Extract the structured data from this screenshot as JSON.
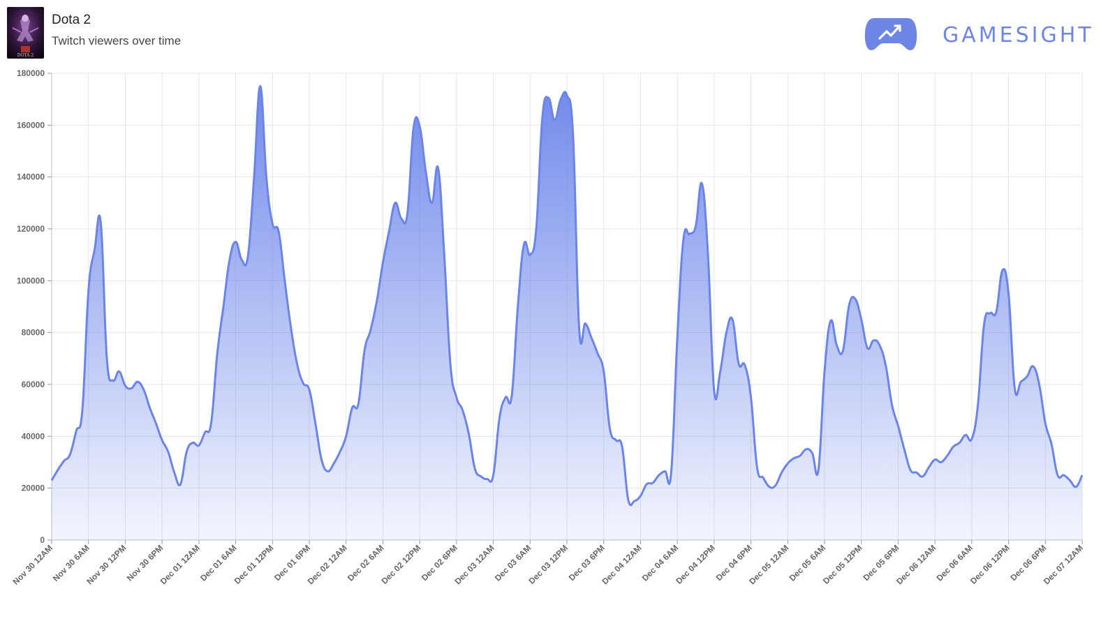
{
  "header": {
    "game_title": "Dota 2",
    "subtitle": "Twitch viewers over time",
    "thumbnail_icon": "dota2-cover-icon",
    "thumbnail_label": "DOTA 2"
  },
  "brand": {
    "name": "GAMESIGHT",
    "icon": "gamepad-trend-icon",
    "color": "#6d86e6"
  },
  "chart_data": {
    "type": "area",
    "title": "",
    "xlabel": "",
    "ylabel": "",
    "ylim": [
      0,
      180000
    ],
    "yticks": [
      0,
      20000,
      40000,
      60000,
      80000,
      100000,
      120000,
      140000,
      160000,
      180000
    ],
    "ytick_labels": [
      "0",
      "20000",
      "40000",
      "60000",
      "80000",
      "100000",
      "120000",
      "140000",
      "160000",
      "180000"
    ],
    "xlim": [
      0,
      168
    ],
    "xtick_hours": [
      0,
      6,
      12,
      18,
      24,
      30,
      36,
      42,
      48,
      54,
      60,
      66,
      72,
      78,
      84,
      90,
      96,
      102,
      108,
      114,
      120,
      126,
      132,
      138,
      144,
      150,
      156,
      162,
      168
    ],
    "xtick_labels": [
      "Nov 30 12AM",
      "Nov 30 6AM",
      "Nov 30 12PM",
      "Nov 30 6PM",
      "Dec 01 12AM",
      "Dec 01 6AM",
      "Dec 01 12PM",
      "Dec 01 6PM",
      "Dec 02 12AM",
      "Dec 02 6AM",
      "Dec 02 12PM",
      "Dec 02 6PM",
      "Dec 03 12AM",
      "Dec 03 6AM",
      "Dec 03 12PM",
      "Dec 03 6PM",
      "Dec 04 12AM",
      "Dec 04 6AM",
      "Dec 04 12PM",
      "Dec 04 6PM",
      "Dec 05 12AM",
      "Dec 05 6AM",
      "Dec 05 12PM",
      "Dec 05 6PM",
      "Dec 06 12AM",
      "Dec 06 6AM",
      "Dec 06 12PM",
      "Dec 06 6PM",
      "Dec 07 12AM"
    ],
    "grid": true,
    "line_color": "#6a84ea",
    "fill_color": "#6a84ea",
    "series": [
      {
        "points": [
          [
            0,
            23000
          ],
          [
            1,
            27000
          ],
          [
            2,
            30500
          ],
          [
            3,
            33000
          ],
          [
            4,
            42000
          ],
          [
            5,
            50000
          ],
          [
            6,
            96000
          ],
          [
            7,
            112000
          ],
          [
            8,
            122500
          ],
          [
            9,
            70000
          ],
          [
            10,
            61500
          ],
          [
            11,
            65000
          ],
          [
            12,
            59500
          ],
          [
            13,
            58500
          ],
          [
            14,
            61000
          ],
          [
            15,
            58000
          ],
          [
            16,
            51000
          ],
          [
            17,
            45000
          ],
          [
            18,
            38500
          ],
          [
            19,
            34000
          ],
          [
            20,
            26000
          ],
          [
            21,
            21500
          ],
          [
            22,
            34000
          ],
          [
            23,
            37500
          ],
          [
            24,
            36500
          ],
          [
            25,
            41500
          ],
          [
            26,
            45000
          ],
          [
            27,
            72000
          ],
          [
            28,
            90000
          ],
          [
            29,
            108000
          ],
          [
            30,
            115000
          ],
          [
            31,
            108000
          ],
          [
            32,
            109500
          ],
          [
            33,
            140000
          ],
          [
            34,
            175000
          ],
          [
            35,
            140000
          ],
          [
            36,
            122000
          ],
          [
            37,
            119000
          ],
          [
            38,
            100000
          ],
          [
            39,
            82000
          ],
          [
            40,
            68000
          ],
          [
            41,
            60500
          ],
          [
            42,
            58000
          ],
          [
            43,
            45000
          ],
          [
            44,
            31000
          ],
          [
            45,
            26500
          ],
          [
            46,
            29500
          ],
          [
            47,
            34000
          ],
          [
            48,
            40000
          ],
          [
            49,
            51000
          ],
          [
            50,
            52500
          ],
          [
            51,
            73000
          ],
          [
            52,
            81000
          ],
          [
            53,
            92000
          ],
          [
            54,
            107000
          ],
          [
            55,
            119000
          ],
          [
            56,
            130000
          ],
          [
            57,
            124000
          ],
          [
            58,
            126000
          ],
          [
            59,
            159000
          ],
          [
            60,
            159500
          ],
          [
            61,
            142000
          ],
          [
            62,
            130000
          ],
          [
            63,
            143500
          ],
          [
            64,
            110000
          ],
          [
            65,
            68000
          ],
          [
            66,
            55000
          ],
          [
            67,
            50000
          ],
          [
            68,
            41000
          ],
          [
            69,
            27500
          ],
          [
            70,
            24500
          ],
          [
            71,
            23500
          ],
          [
            72,
            25000
          ],
          [
            73,
            47000
          ],
          [
            74,
            55000
          ],
          [
            75,
            55500
          ],
          [
            76,
            90000
          ],
          [
            77,
            114000
          ],
          [
            78,
            110000
          ],
          [
            79,
            120000
          ],
          [
            80,
            163000
          ],
          [
            81,
            170500
          ],
          [
            82,
            162000
          ],
          [
            83,
            170000
          ],
          [
            84,
            171500
          ],
          [
            85,
            156000
          ],
          [
            86,
            81500
          ],
          [
            87,
            83500
          ],
          [
            88,
            78000
          ],
          [
            89,
            72000
          ],
          [
            90,
            65000
          ],
          [
            91,
            43000
          ],
          [
            92,
            38500
          ],
          [
            93,
            36000
          ],
          [
            94,
            15500
          ],
          [
            95,
            15000
          ],
          [
            96,
            17000
          ],
          [
            97,
            21500
          ],
          [
            98,
            22000
          ],
          [
            99,
            25000
          ],
          [
            100,
            26500
          ],
          [
            101,
            26000
          ],
          [
            102,
            78000
          ],
          [
            103,
            116000
          ],
          [
            104,
            118000
          ],
          [
            105,
            121000
          ],
          [
            106,
            137500
          ],
          [
            107,
            110000
          ],
          [
            108,
            57500
          ],
          [
            109,
            65000
          ],
          [
            110,
            80000
          ],
          [
            111,
            85000
          ],
          [
            112,
            68000
          ],
          [
            113,
            67500
          ],
          [
            114,
            55000
          ],
          [
            115,
            28000
          ],
          [
            116,
            24000
          ],
          [
            117,
            20500
          ],
          [
            118,
            21000
          ],
          [
            119,
            26000
          ],
          [
            120,
            29500
          ],
          [
            121,
            31500
          ],
          [
            122,
            32500
          ],
          [
            123,
            35000
          ],
          [
            124,
            33500
          ],
          [
            125,
            27000
          ],
          [
            126,
            65000
          ],
          [
            127,
            84500
          ],
          [
            128,
            75000
          ],
          [
            129,
            73000
          ],
          [
            130,
            90500
          ],
          [
            131,
            93000
          ],
          [
            132,
            85000
          ],
          [
            133,
            74000
          ],
          [
            134,
            77000
          ],
          [
            135,
            75000
          ],
          [
            136,
            67000
          ],
          [
            137,
            52000
          ],
          [
            138,
            44000
          ],
          [
            139,
            35000
          ],
          [
            140,
            27000
          ],
          [
            141,
            26000
          ],
          [
            142,
            24500
          ],
          [
            143,
            28000
          ],
          [
            144,
            31000
          ],
          [
            145,
            30000
          ],
          [
            146,
            32500
          ],
          [
            147,
            36000
          ],
          [
            148,
            37500
          ],
          [
            149,
            40500
          ],
          [
            150,
            39000
          ],
          [
            151,
            52000
          ],
          [
            152,
            83000
          ],
          [
            153,
            87500
          ],
          [
            154,
            88000
          ],
          [
            155,
            104000
          ],
          [
            156,
            95000
          ],
          [
            157,
            58500
          ],
          [
            158,
            61000
          ],
          [
            159,
            63000
          ],
          [
            160,
            67000
          ],
          [
            161,
            60000
          ],
          [
            162,
            45000
          ],
          [
            163,
            37000
          ],
          [
            164,
            25000
          ],
          [
            165,
            25000
          ],
          [
            166,
            23000
          ],
          [
            167,
            20500
          ],
          [
            168,
            25000
          ]
        ]
      }
    ]
  }
}
